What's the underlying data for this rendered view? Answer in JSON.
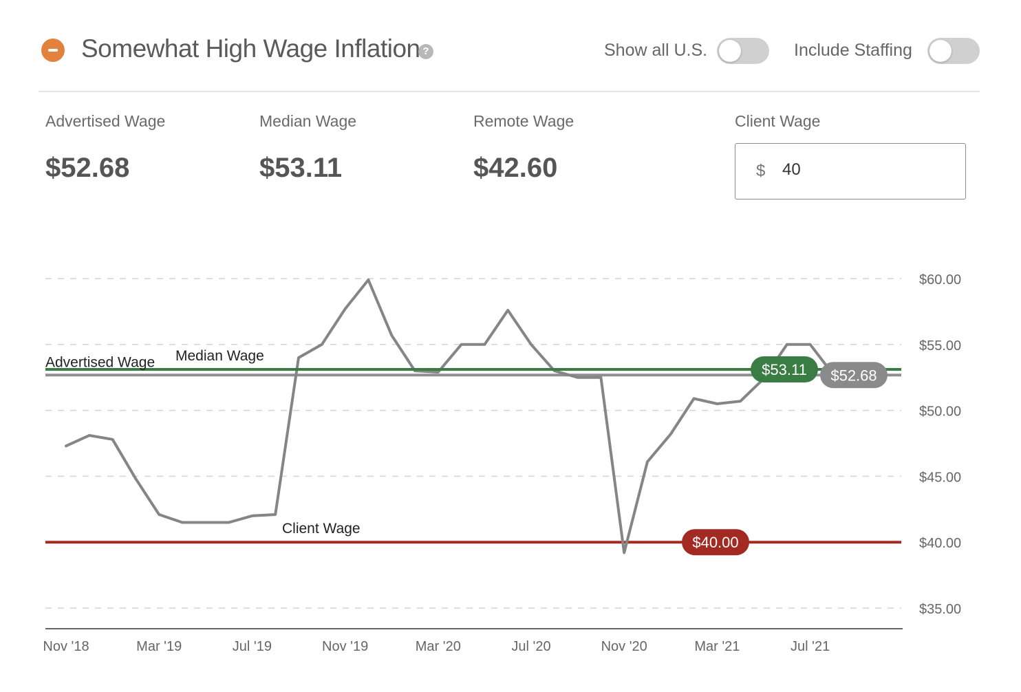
{
  "header": {
    "title": "Somewhat High Wage Inflation",
    "help_icon": "question-circle-icon",
    "collapse_icon": "minus-circle-icon",
    "accent_color": "#e2823d",
    "toggles": [
      {
        "label": "Show all U.S.",
        "on": false
      },
      {
        "label": "Include Staffing",
        "on": false
      }
    ]
  },
  "stats": {
    "advertised": {
      "label": "Advertised Wage",
      "value": "$52.68"
    },
    "median": {
      "label": "Median Wage",
      "value": "$53.11"
    },
    "remote": {
      "label": "Remote Wage",
      "value": "$42.60"
    },
    "client": {
      "label": "Client Wage",
      "prefix": "$",
      "value": "40"
    }
  },
  "chart_data": {
    "type": "line",
    "x": [
      "Nov '18",
      "Dec '18",
      "Jan '19",
      "Feb '19",
      "Mar '19",
      "Apr '19",
      "May '19",
      "Jun '19",
      "Jul '19",
      "Aug '19",
      "Sep '19",
      "Oct '19",
      "Nov '19",
      "Dec '19",
      "Jan '20",
      "Feb '20",
      "Mar '20",
      "Apr '20",
      "May '20",
      "Jun '20",
      "Jul '20",
      "Aug '20",
      "Sep '20",
      "Oct '20",
      "Nov '20",
      "Dec '20",
      "Jan '21",
      "Feb '21",
      "Mar '21",
      "Apr '21",
      "May '21",
      "Jun '21",
      "Jul '21",
      "Aug '21"
    ],
    "x_tick_labels": [
      "Nov '18",
      "Mar '19",
      "Jul '19",
      "Nov '19",
      "Mar '20",
      "Jul '20",
      "Nov '20",
      "Mar '21",
      "Jul '21"
    ],
    "series": [
      {
        "values": [
          47.3,
          48.1,
          47.8,
          44.8,
          42.1,
          41.5,
          41.5,
          41.5,
          42.0,
          42.1,
          54.0,
          55.0,
          57.7,
          59.9,
          55.7,
          53.0,
          52.9,
          55.0,
          55.0,
          57.6,
          55.0,
          53.0,
          52.5,
          52.5,
          39.2,
          46.1,
          48.2,
          50.9,
          50.5,
          50.7,
          52.4,
          55.0,
          55.0,
          52.7
        ],
        "color": "#858585"
      }
    ],
    "reference_lines": [
      {
        "name": "Median Wage",
        "value": 53.11,
        "color": "#3a7d44",
        "badge": "$53.11"
      },
      {
        "name": "Advertised Wage",
        "value": 52.68,
        "color": "#8f8f8f",
        "badge": "$52.68"
      },
      {
        "name": "Client Wage",
        "value": 40.0,
        "color": "#a32a22",
        "badge": "$40.00"
      }
    ],
    "y_ticks": [
      60,
      55,
      50,
      45,
      40,
      35
    ],
    "y_tick_labels": [
      "$60.00",
      "$55.00",
      "$50.00",
      "$45.00",
      "$40.00",
      "$35.00"
    ],
    "ylim": [
      33.5,
      60.5
    ],
    "grid": true,
    "title": "",
    "xlabel": "",
    "ylabel": ""
  }
}
